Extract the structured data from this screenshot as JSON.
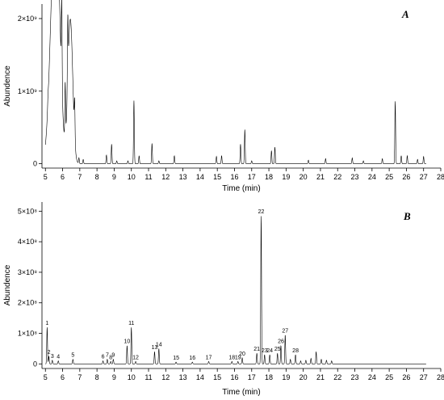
{
  "chart_data": [
    {
      "type": "line",
      "panel_label": "A",
      "xlabel": "Time (min)",
      "ylabel": "Abundence",
      "xlim": [
        4.8,
        28
      ],
      "ylim": [
        -60000000,
        2200000000
      ],
      "x_ticks": [
        "5",
        "6",
        "7",
        "8",
        "9",
        "10",
        "11",
        "12",
        "13",
        "14",
        "15",
        "16",
        "17",
        "18",
        "19",
        "20",
        "21",
        "22",
        "23",
        "24",
        "25",
        "26",
        "27",
        "28"
      ],
      "y_ticks": [
        {
          "value": 0,
          "label": "0"
        },
        {
          "value": 1000000000,
          "label": "1×10⁹"
        },
        {
          "value": 2000000000,
          "label": "2×10⁹"
        }
      ],
      "peaks": [
        {
          "t": 5.15,
          "h": 90000000
        },
        {
          "t": 5.45,
          "h": 2080000000,
          "w": 0.22
        },
        {
          "t": 5.7,
          "h": 2100000000,
          "w": 0.2
        },
        {
          "t": 5.95,
          "h": 1150000000
        },
        {
          "t": 6.15,
          "h": 750000000
        },
        {
          "t": 6.3,
          "h": 900000000
        },
        {
          "t": 6.45,
          "h": 1990000000,
          "w": 0.14
        },
        {
          "t": 6.7,
          "h": 500000000
        },
        {
          "t": 6.95,
          "h": 80000000
        },
        {
          "t": 7.2,
          "h": 60000000
        },
        {
          "t": 8.55,
          "h": 120000000
        },
        {
          "t": 8.85,
          "h": 270000000
        },
        {
          "t": 9.15,
          "h": 40000000
        },
        {
          "t": 9.8,
          "h": 40000000
        },
        {
          "t": 10.15,
          "h": 870000000
        },
        {
          "t": 10.45,
          "h": 110000000
        },
        {
          "t": 11.2,
          "h": 280000000
        },
        {
          "t": 11.6,
          "h": 40000000
        },
        {
          "t": 12.5,
          "h": 110000000
        },
        {
          "t": 14.95,
          "h": 100000000
        },
        {
          "t": 15.25,
          "h": 110000000
        },
        {
          "t": 16.35,
          "h": 270000000
        },
        {
          "t": 16.6,
          "h": 470000000
        },
        {
          "t": 17.0,
          "h": 40000000
        },
        {
          "t": 18.15,
          "h": 180000000
        },
        {
          "t": 18.35,
          "h": 230000000
        },
        {
          "t": 20.3,
          "h": 50000000
        },
        {
          "t": 21.3,
          "h": 70000000
        },
        {
          "t": 22.85,
          "h": 80000000
        },
        {
          "t": 23.5,
          "h": 40000000
        },
        {
          "t": 24.6,
          "h": 70000000
        },
        {
          "t": 25.35,
          "h": 860000000
        },
        {
          "t": 25.7,
          "h": 110000000
        },
        {
          "t": 26.05,
          "h": 110000000
        },
        {
          "t": 26.65,
          "h": 60000000
        },
        {
          "t": 27.0,
          "h": 100000000
        }
      ]
    },
    {
      "type": "line",
      "panel_label": "B",
      "xlabel": "Time (min)",
      "ylabel": "Abundence",
      "xlim": [
        4.8,
        28
      ],
      "ylim": [
        -15000000,
        530000000
      ],
      "x_ticks": [
        "5",
        "6",
        "7",
        "8",
        "9",
        "10",
        "11",
        "12",
        "13",
        "14",
        "15",
        "16",
        "17",
        "18",
        "19",
        "20",
        "21",
        "22",
        "23",
        "24",
        "25",
        "26",
        "27",
        "28"
      ],
      "y_ticks": [
        {
          "value": 0,
          "label": "0"
        },
        {
          "value": 100000000,
          "label": "1×10⁸"
        },
        {
          "value": 200000000,
          "label": "2×10⁸"
        },
        {
          "value": 300000000,
          "label": "3×10⁸"
        },
        {
          "value": 400000000,
          "label": "4×10⁸"
        },
        {
          "value": 500000000,
          "label": "5×10⁸"
        }
      ],
      "peaks": [
        {
          "t": 5.1,
          "h": 120000000,
          "label": "1"
        },
        {
          "t": 5.2,
          "h": 25000000,
          "label": "2"
        },
        {
          "t": 5.4,
          "h": 12000000,
          "label": "3"
        },
        {
          "t": 5.75,
          "h": 10000000,
          "label": "4"
        },
        {
          "t": 6.6,
          "h": 15000000,
          "label": "5"
        },
        {
          "t": 8.35,
          "h": 10000000,
          "label": "6"
        },
        {
          "t": 8.6,
          "h": 15000000,
          "label": "7"
        },
        {
          "t": 8.8,
          "h": 8000000,
          "label": "8"
        },
        {
          "t": 8.95,
          "h": 15000000,
          "label": "9"
        },
        {
          "t": 9.75,
          "h": 60000000,
          "label": "10"
        },
        {
          "t": 10.0,
          "h": 120000000,
          "label": "11"
        },
        {
          "t": 10.25,
          "h": 8000000,
          "label": "12"
        },
        {
          "t": 11.35,
          "h": 40000000,
          "label": "13"
        },
        {
          "t": 11.6,
          "h": 50000000,
          "label": "14"
        },
        {
          "t": 12.6,
          "h": 6000000,
          "label": "15"
        },
        {
          "t": 13.55,
          "h": 6000000,
          "label": "16"
        },
        {
          "t": 14.5,
          "h": 8000000,
          "label": "17"
        },
        {
          "t": 15.85,
          "h": 8000000,
          "label": "18"
        },
        {
          "t": 16.2,
          "h": 8000000,
          "label": "19"
        },
        {
          "t": 16.45,
          "h": 20000000,
          "label": "20"
        },
        {
          "t": 17.3,
          "h": 35000000,
          "label": "21"
        },
        {
          "t": 17.55,
          "h": 485000000,
          "label": "22"
        },
        {
          "t": 17.75,
          "h": 30000000,
          "label": "23"
        },
        {
          "t": 18.05,
          "h": 30000000,
          "label": "24"
        },
        {
          "t": 18.5,
          "h": 35000000,
          "label": "25"
        },
        {
          "t": 18.7,
          "h": 60000000,
          "label": "26"
        },
        {
          "t": 18.95,
          "h": 95000000,
          "label": "27"
        },
        {
          "t": 19.55,
          "h": 30000000,
          "label": "28"
        },
        {
          "t": 19.25,
          "h": 15000000
        },
        {
          "t": 19.85,
          "h": 10000000
        },
        {
          "t": 20.15,
          "h": 12000000
        },
        {
          "t": 20.45,
          "h": 18000000
        },
        {
          "t": 20.75,
          "h": 40000000
        },
        {
          "t": 21.05,
          "h": 15000000
        },
        {
          "t": 21.35,
          "h": 12000000
        },
        {
          "t": 21.65,
          "h": 10000000
        }
      ]
    }
  ]
}
